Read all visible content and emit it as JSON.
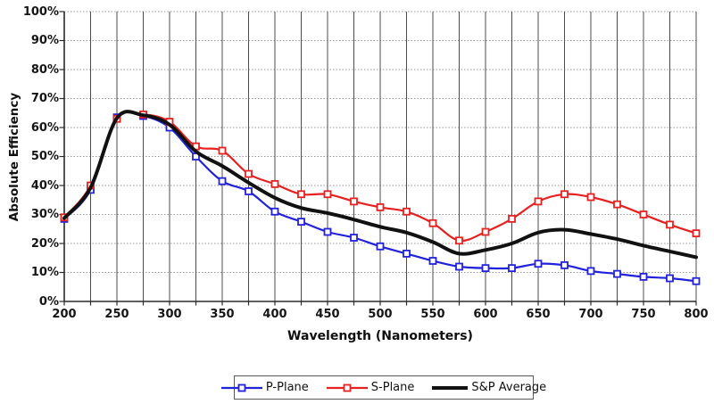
{
  "chart_data": {
    "type": "line",
    "title": "",
    "xlabel": "Wavelength (Nanometers)",
    "ylabel": "Absolute Efficiency",
    "xlim": [
      200,
      800
    ],
    "ylim": [
      0,
      100
    ],
    "x_tick_labels": [
      "200",
      "250",
      "300",
      "350",
      "400",
      "450",
      "500",
      "550",
      "600",
      "650",
      "700",
      "750",
      "800"
    ],
    "y_tick_labels": [
      "0%",
      "10%",
      "20%",
      "30%",
      "40%",
      "50%",
      "60%",
      "70%",
      "80%",
      "90%",
      "100%"
    ],
    "grid": {
      "vertical_step_nm": 25,
      "horizontal_step_pct": 10,
      "grid_on": true
    },
    "legend_position": "bottom-center",
    "x": [
      200,
      225,
      250,
      275,
      300,
      325,
      350,
      375,
      400,
      425,
      450,
      475,
      500,
      525,
      550,
      575,
      600,
      625,
      650,
      675,
      700,
      725,
      750,
      775,
      800
    ],
    "series": [
      {
        "name": "P-Plane",
        "color": "#2222dd",
        "marker": "square",
        "line_width": 2.2,
        "values": [
          28.5,
          38.5,
          63.5,
          64,
          60,
          50,
          41.5,
          38,
          31,
          27.5,
          24,
          22,
          19,
          16.5,
          14,
          12,
          11.5,
          11.5,
          13,
          12.5,
          10.5,
          9.5,
          8.5,
          8,
          7
        ]
      },
      {
        "name": "S-Plane",
        "color": "#e82020",
        "marker": "square",
        "line_width": 2.2,
        "values": [
          29,
          40,
          63,
          64.5,
          62,
          53.5,
          52,
          44,
          40.5,
          37,
          37,
          34.5,
          32.5,
          31,
          27,
          21,
          24,
          28.5,
          34.5,
          37,
          36,
          33.5,
          30,
          26.5,
          23.5
        ]
      },
      {
        "name": "S&P Average",
        "color": "#111111",
        "marker": "none",
        "line_width": 4,
        "values": [
          28.75,
          39.25,
          63.25,
          64.25,
          61,
          51.75,
          46.75,
          41,
          35.75,
          32.25,
          30.5,
          28.25,
          25.75,
          23.75,
          20.5,
          16.5,
          17.75,
          20,
          23.75,
          24.75,
          23.25,
          21.5,
          19.25,
          17.25,
          15.25
        ]
      }
    ],
    "colors": {
      "vertical_grid": "#4d4d4d",
      "horizontal_grid": "#9b9b9b",
      "axis": "#2a2a2a",
      "background": "#ffffff"
    }
  }
}
